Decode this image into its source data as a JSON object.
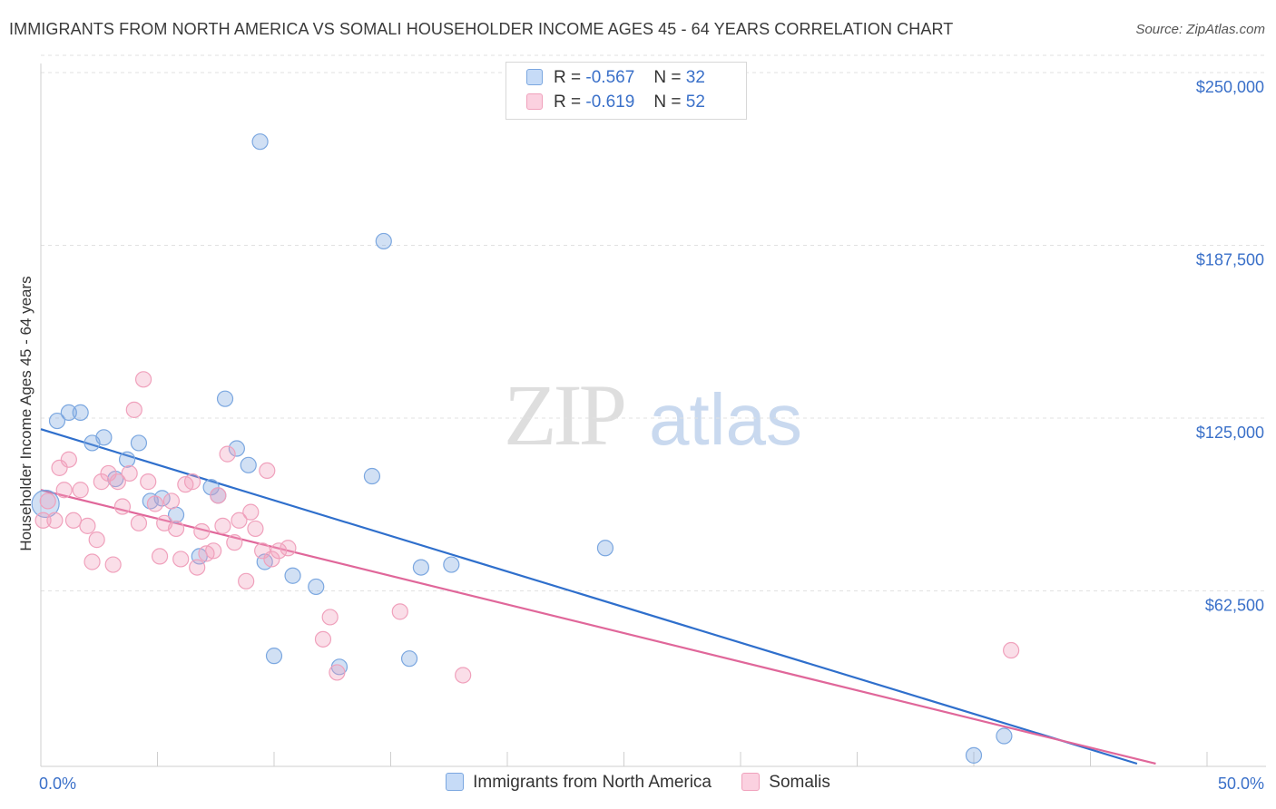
{
  "header": {
    "title": "IMMIGRANTS FROM NORTH AMERICA VS SOMALI HOUSEHOLDER INCOME AGES 45 - 64 YEARS CORRELATION CHART",
    "source": "Source: ZipAtlas.com"
  },
  "watermark": {
    "zip": "ZIP",
    "atlas": "atlas"
  },
  "legend": {
    "rows": [
      {
        "r_label": "R =",
        "r_value": "-0.567",
        "n_label": "N =",
        "n_value": "32"
      },
      {
        "r_label": "R =",
        "r_value": "-0.619",
        "n_label": "N =",
        "n_value": "52"
      }
    ]
  },
  "chart_data": {
    "type": "scatter",
    "ylabel": "Householder Income Ages 45 - 64 years",
    "xlim": [
      0,
      50
    ],
    "ylim": [
      0,
      260000
    ],
    "x_tick_labels": [
      "0.0%",
      "50.0%"
    ],
    "y_ticks": [
      62500,
      125000,
      187500,
      250000
    ],
    "y_tick_labels": [
      "$62,500",
      "$125,000",
      "$187,500",
      "$250,000"
    ],
    "grid": "horizontal dashed",
    "legend_position": "top-center",
    "series": [
      {
        "name": "Immigrants from North America",
        "color": "#7ba7e0",
        "line_color": "#2f6fcc",
        "trend": {
          "x": [
            0,
            47.0
          ],
          "y": [
            121000,
            0
          ]
        },
        "points": [
          {
            "x": 0.2,
            "y": 94000
          },
          {
            "x": 0.7,
            "y": 124000
          },
          {
            "x": 1.2,
            "y": 127000
          },
          {
            "x": 1.7,
            "y": 127000
          },
          {
            "x": 2.2,
            "y": 116000
          },
          {
            "x": 2.7,
            "y": 118000
          },
          {
            "x": 3.2,
            "y": 103000
          },
          {
            "x": 3.7,
            "y": 110000
          },
          {
            "x": 4.2,
            "y": 116000
          },
          {
            "x": 4.7,
            "y": 95000
          },
          {
            "x": 5.2,
            "y": 96000
          },
          {
            "x": 5.8,
            "y": 90000
          },
          {
            "x": 6.8,
            "y": 75000
          },
          {
            "x": 7.3,
            "y": 100000
          },
          {
            "x": 7.6,
            "y": 97000
          },
          {
            "x": 7.9,
            "y": 132000
          },
          {
            "x": 8.4,
            "y": 114000
          },
          {
            "x": 8.9,
            "y": 108000
          },
          {
            "x": 9.4,
            "y": 225000
          },
          {
            "x": 9.6,
            "y": 73000
          },
          {
            "x": 10.0,
            "y": 39000
          },
          {
            "x": 10.8,
            "y": 68000
          },
          {
            "x": 11.8,
            "y": 64000
          },
          {
            "x": 12.8,
            "y": 35000
          },
          {
            "x": 14.2,
            "y": 104000
          },
          {
            "x": 14.7,
            "y": 189000
          },
          {
            "x": 15.8,
            "y": 38000
          },
          {
            "x": 16.3,
            "y": 71000
          },
          {
            "x": 17.6,
            "y": 72000
          },
          {
            "x": 24.2,
            "y": 78000
          },
          {
            "x": 40.0,
            "y": 3000
          },
          {
            "x": 41.3,
            "y": 10000
          }
        ]
      },
      {
        "name": "Somalis",
        "color": "#f0a1bc",
        "line_color": "#e0679a",
        "trend": {
          "x": [
            0,
            47.8
          ],
          "y": [
            99000,
            0
          ]
        },
        "points": [
          {
            "x": 0.1,
            "y": 88000
          },
          {
            "x": 0.3,
            "y": 95000
          },
          {
            "x": 0.6,
            "y": 88000
          },
          {
            "x": 0.8,
            "y": 107000
          },
          {
            "x": 1.0,
            "y": 99000
          },
          {
            "x": 1.2,
            "y": 110000
          },
          {
            "x": 1.4,
            "y": 88000
          },
          {
            "x": 1.7,
            "y": 99000
          },
          {
            "x": 2.0,
            "y": 86000
          },
          {
            "x": 2.2,
            "y": 73000
          },
          {
            "x": 2.4,
            "y": 81000
          },
          {
            "x": 2.6,
            "y": 102000
          },
          {
            "x": 2.9,
            "y": 105000
          },
          {
            "x": 3.1,
            "y": 72000
          },
          {
            "x": 3.3,
            "y": 102000
          },
          {
            "x": 3.5,
            "y": 93000
          },
          {
            "x": 3.8,
            "y": 105000
          },
          {
            "x": 4.0,
            "y": 128000
          },
          {
            "x": 4.2,
            "y": 87000
          },
          {
            "x": 4.4,
            "y": 139000
          },
          {
            "x": 4.6,
            "y": 102000
          },
          {
            "x": 4.9,
            "y": 94000
          },
          {
            "x": 5.1,
            "y": 75000
          },
          {
            "x": 5.3,
            "y": 87000
          },
          {
            "x": 5.6,
            "y": 95000
          },
          {
            "x": 5.8,
            "y": 85000
          },
          {
            "x": 6.0,
            "y": 74000
          },
          {
            "x": 6.2,
            "y": 101000
          },
          {
            "x": 6.5,
            "y": 102000
          },
          {
            "x": 6.7,
            "y": 71000
          },
          {
            "x": 6.9,
            "y": 84000
          },
          {
            "x": 7.1,
            "y": 76000
          },
          {
            "x": 7.4,
            "y": 77000
          },
          {
            "x": 7.6,
            "y": 97000
          },
          {
            "x": 7.8,
            "y": 86000
          },
          {
            "x": 8.0,
            "y": 112000
          },
          {
            "x": 8.3,
            "y": 80000
          },
          {
            "x": 8.5,
            "y": 88000
          },
          {
            "x": 8.8,
            "y": 66000
          },
          {
            "x": 9.0,
            "y": 91000
          },
          {
            "x": 9.2,
            "y": 85000
          },
          {
            "x": 9.5,
            "y": 77000
          },
          {
            "x": 9.7,
            "y": 106000
          },
          {
            "x": 9.9,
            "y": 74000
          },
          {
            "x": 10.2,
            "y": 77000
          },
          {
            "x": 10.6,
            "y": 78000
          },
          {
            "x": 12.1,
            "y": 45000
          },
          {
            "x": 12.4,
            "y": 53000
          },
          {
            "x": 12.7,
            "y": 33000
          },
          {
            "x": 15.4,
            "y": 55000
          },
          {
            "x": 18.1,
            "y": 32000
          },
          {
            "x": 41.6,
            "y": 41000
          }
        ]
      }
    ]
  }
}
